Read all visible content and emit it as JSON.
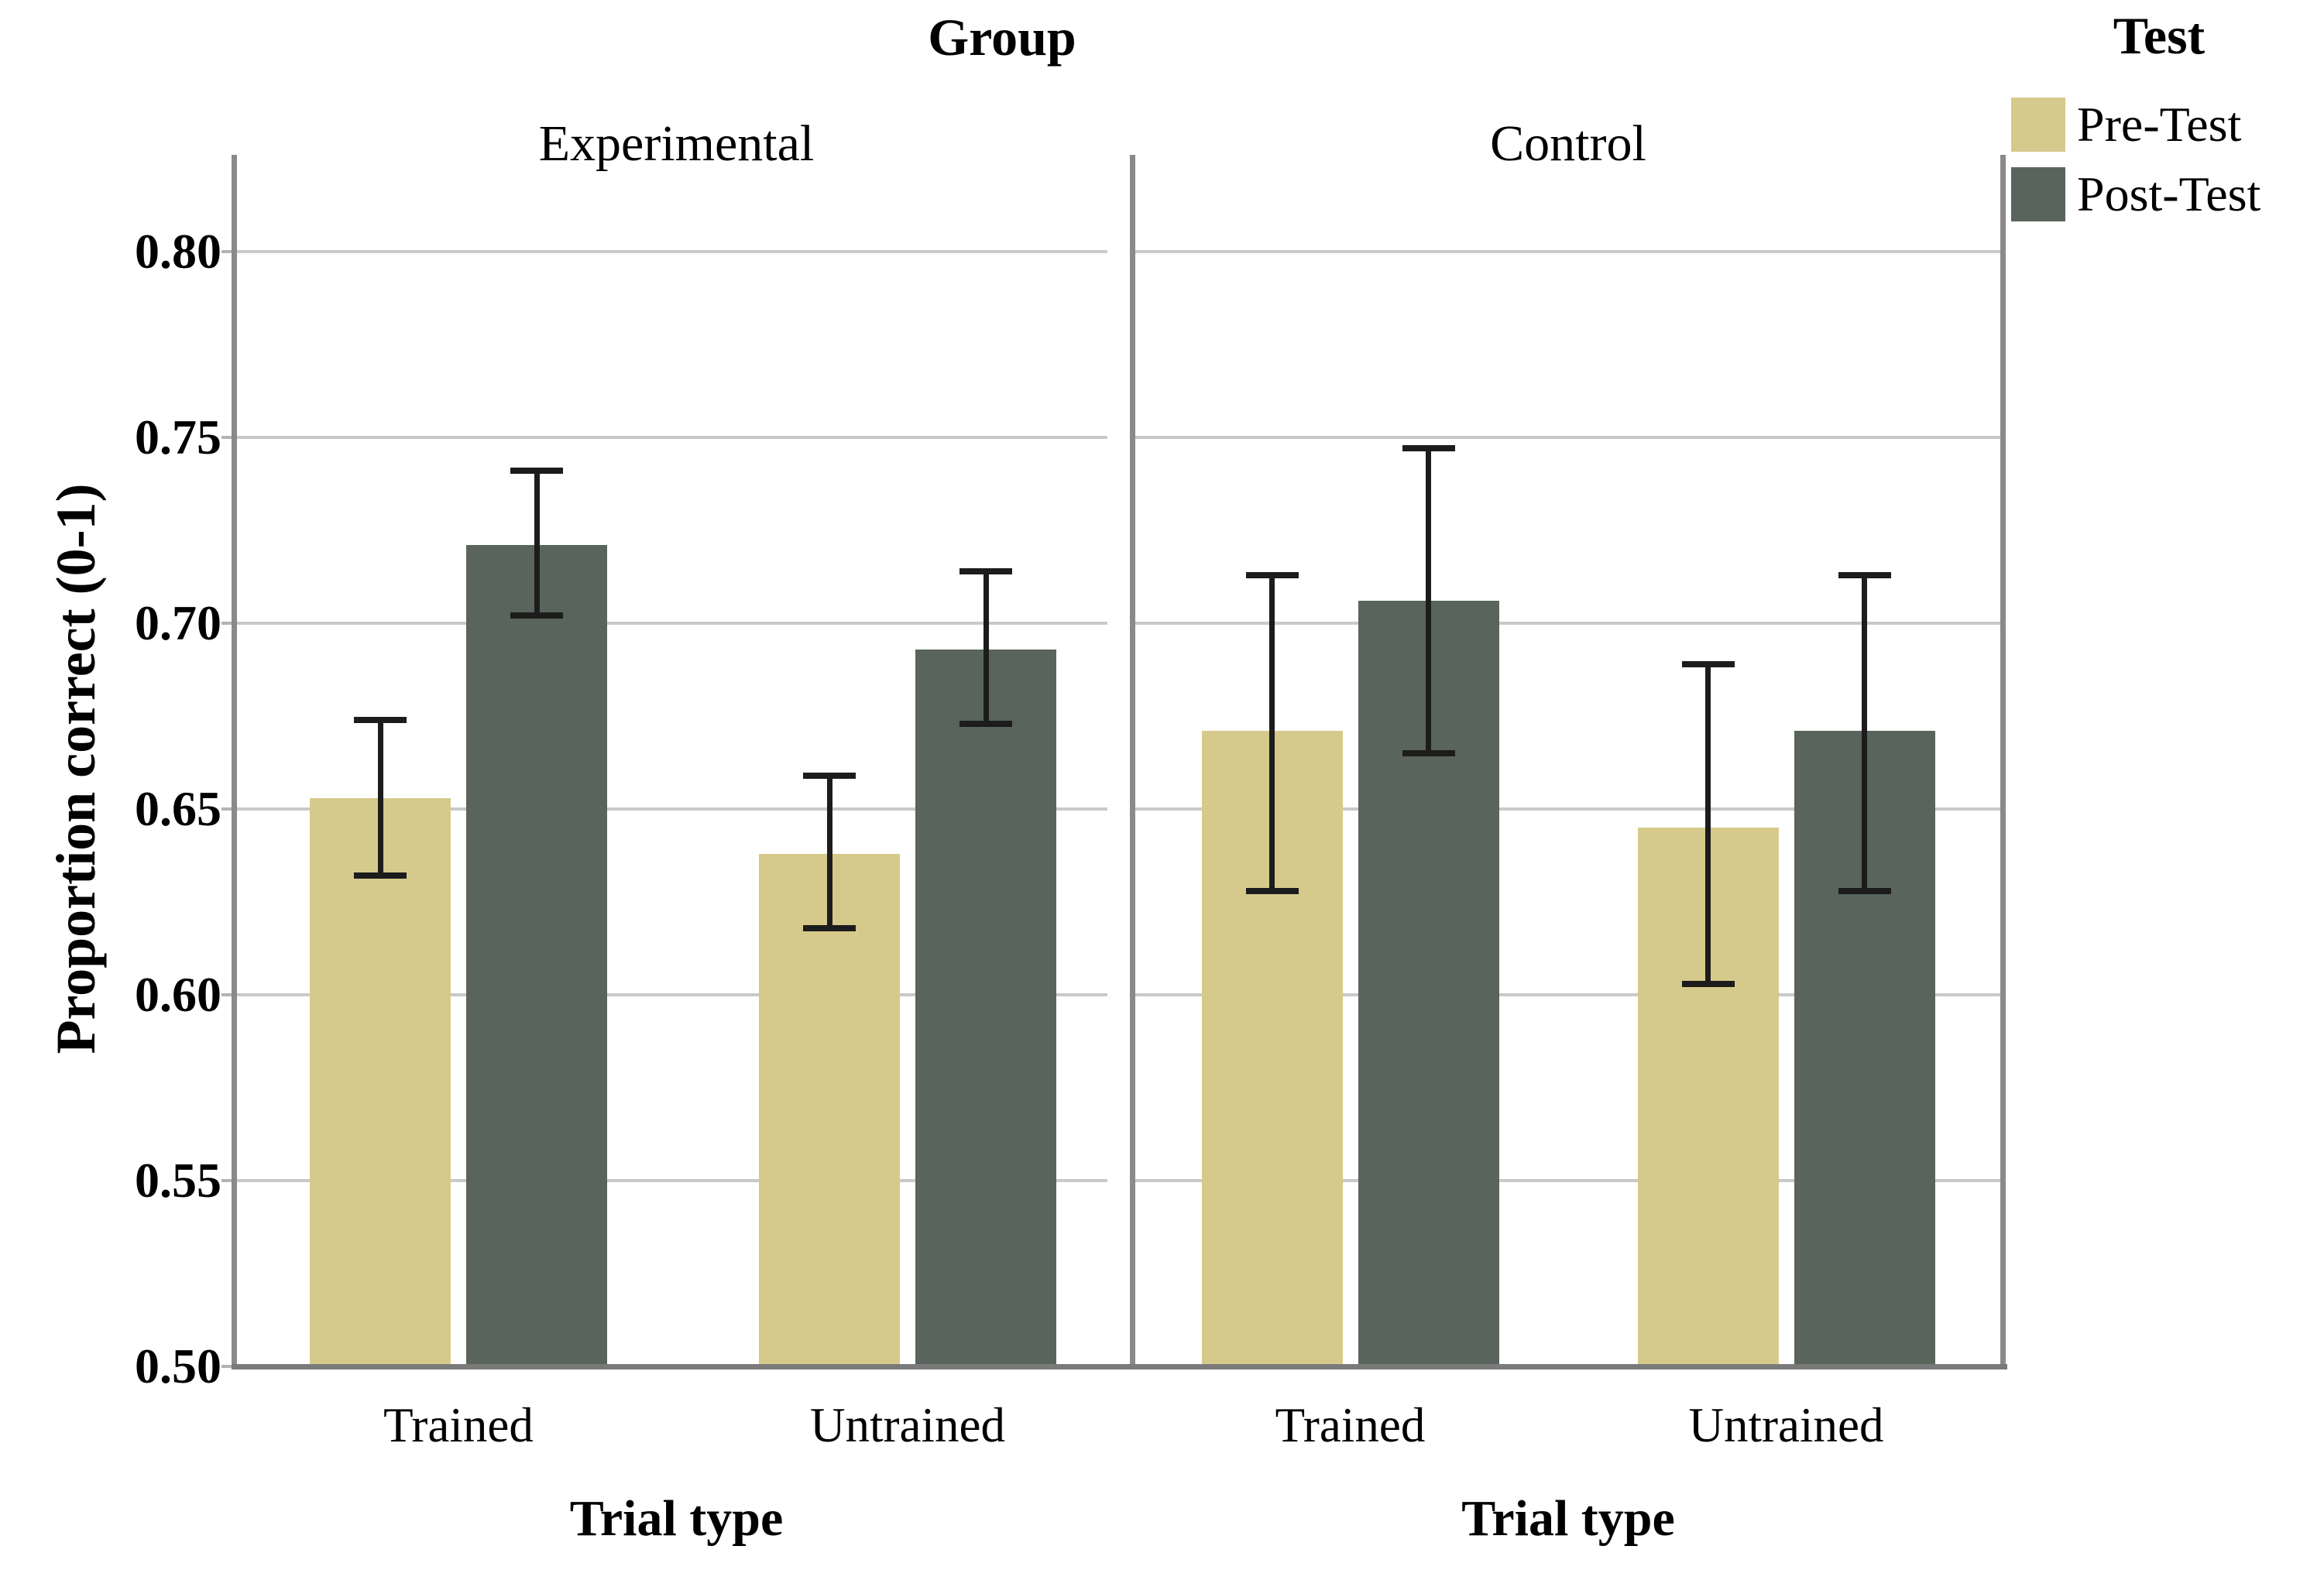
{
  "figure": {
    "group_title": "Group",
    "y_axis": {
      "title": "Proportion correct (0-1)",
      "tick_labels": [
        "0.80",
        "0.75",
        "0.70",
        "0.65",
        "0.60",
        "0.55",
        "0.50"
      ],
      "min": 0.5,
      "max": 0.8,
      "tick_step": 0.05
    },
    "legend": {
      "title": "Test",
      "items": [
        {
          "label": "Pre-Test",
          "color": "#d5ca8b"
        },
        {
          "label": "Post-Test",
          "color": "#59655c"
        }
      ]
    }
  },
  "chart_data": {
    "type": "bar",
    "title": "Group",
    "ylabel": "Proportion correct (0-1)",
    "xlabel": "Trial type",
    "ylim": [
      0.5,
      0.8
    ],
    "yticks": [
      0.8,
      0.75,
      0.7,
      0.65,
      0.6,
      0.55,
      0.5
    ],
    "grid": true,
    "legend_position": "top-right",
    "legend_title": "Test",
    "x_axis_title": "Trial type",
    "panels": [
      {
        "label": "Experimental",
        "categories": [
          "Trained",
          "Untrained"
        ],
        "series": [
          {
            "name": "Pre-Test",
            "color": "#d5ca8b",
            "values": [
              0.653,
              0.638
            ],
            "error_low": [
              0.632,
              0.618
            ],
            "error_high": [
              0.674,
              0.659
            ]
          },
          {
            "name": "Post-Test",
            "color": "#59655c",
            "values": [
              0.721,
              0.693
            ],
            "error_low": [
              0.702,
              0.673
            ],
            "error_high": [
              0.741,
              0.714
            ]
          }
        ]
      },
      {
        "label": "Control",
        "categories": [
          "Trained",
          "Untrained"
        ],
        "series": [
          {
            "name": "Pre-Test",
            "color": "#d5ca8b",
            "values": [
              0.671,
              0.645
            ],
            "error_low": [
              0.628,
              0.603
            ],
            "error_high": [
              0.713,
              0.689
            ]
          },
          {
            "name": "Post-Test",
            "color": "#59655c",
            "values": [
              0.706,
              0.671
            ],
            "error_low": [
              0.665,
              0.628
            ],
            "error_high": [
              0.747,
              0.713
            ]
          }
        ]
      }
    ],
    "style": {
      "pre_test_color": "#d5ca8b",
      "post_test_color": "#59655c",
      "gridline_color": "#c9c9c9",
      "axis_color": "#8a8a8a",
      "error_bar_color": "#1c1c1c"
    }
  }
}
